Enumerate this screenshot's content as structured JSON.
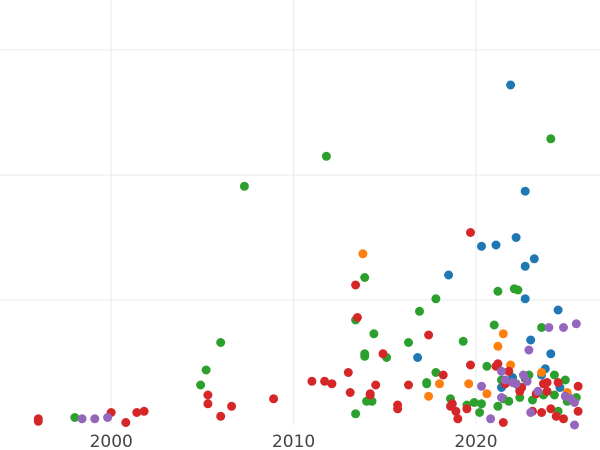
{
  "chart_data": {
    "type": "scatter",
    "title": "",
    "xlabel": "",
    "ylabel": "",
    "xlim": [
      1993.9,
      2026.8
    ],
    "ylim": [
      0,
      340
    ],
    "x_ticks": [
      2000,
      2010,
      2020
    ],
    "y_gridlines": [
      100,
      200,
      300
    ],
    "y_tick_labels_visible": false,
    "grid": true,
    "legend": "none",
    "series": [
      {
        "color": "#1f77b4",
        "points": [
          [
            2021.9,
            272
          ],
          [
            2022.7,
            187
          ],
          [
            2020.3,
            143
          ],
          [
            2021.1,
            144
          ],
          [
            2022.2,
            150
          ],
          [
            2022.7,
            127
          ],
          [
            2023.2,
            133
          ],
          [
            2018.5,
            120
          ],
          [
            2022.7,
            101
          ],
          [
            2024.5,
            92
          ],
          [
            2023.0,
            68
          ],
          [
            2016.8,
            54
          ],
          [
            2024.1,
            57
          ],
          [
            2023.8,
            45
          ],
          [
            2022.0,
            38
          ],
          [
            2022.2,
            33
          ],
          [
            2021.7,
            35
          ],
          [
            2023.6,
            40
          ],
          [
            2025.0,
            25
          ],
          [
            2024.6,
            30
          ],
          [
            2021.4,
            30
          ],
          [
            2022.4,
            28
          ]
        ]
      },
      {
        "color": "#ff7f0e",
        "points": [
          [
            2013.8,
            137
          ],
          [
            2021.5,
            73
          ],
          [
            2021.2,
            63
          ],
          [
            2019.6,
            33
          ],
          [
            2018.0,
            33
          ],
          [
            2017.4,
            23
          ],
          [
            2021.9,
            48
          ],
          [
            2023.6,
            42
          ],
          [
            2025.0,
            26
          ],
          [
            2022.5,
            30
          ],
          [
            2020.6,
            25
          ]
        ]
      },
      {
        "color": "#2ca02c",
        "points": [
          [
            2024.1,
            229
          ],
          [
            2011.8,
            215
          ],
          [
            2007.3,
            191
          ],
          [
            2013.9,
            118
          ],
          [
            2021.2,
            107
          ],
          [
            2022.3,
            108
          ],
          [
            2022.1,
            109
          ],
          [
            2017.8,
            101
          ],
          [
            2016.9,
            91
          ],
          [
            2023.6,
            78
          ],
          [
            2021.0,
            80
          ],
          [
            2013.4,
            84
          ],
          [
            2014.4,
            73
          ],
          [
            2019.3,
            67
          ],
          [
            2016.3,
            66
          ],
          [
            2006.0,
            66
          ],
          [
            2013.9,
            55
          ],
          [
            2013.9,
            57
          ],
          [
            2015.1,
            54
          ],
          [
            2005.2,
            44
          ],
          [
            2004.9,
            32
          ],
          [
            2020.6,
            47
          ],
          [
            2022.9,
            40
          ],
          [
            2024.3,
            40
          ],
          [
            2024.9,
            36
          ],
          [
            2017.3,
            34
          ],
          [
            2017.8,
            42
          ],
          [
            2017.3,
            33
          ],
          [
            2021.4,
            36
          ],
          [
            2019.9,
            18
          ],
          [
            2018.6,
            21
          ],
          [
            2020.2,
            10
          ],
          [
            2013.4,
            9
          ],
          [
            2014.0,
            19
          ],
          [
            2014.3,
            19
          ],
          [
            2019.5,
            16
          ],
          [
            2020.3,
            17
          ],
          [
            2021.2,
            15
          ],
          [
            2021.8,
            19
          ],
          [
            2022.4,
            22
          ],
          [
            2023.1,
            20
          ],
          [
            2024.3,
            24
          ],
          [
            2025.0,
            19
          ],
          [
            2025.5,
            22
          ],
          [
            1998.0,
            6
          ],
          [
            2022.7,
            37
          ],
          [
            2023.7,
            24
          ],
          [
            2021.5,
            21
          ],
          [
            2024.5,
            11
          ]
        ]
      },
      {
        "color": "#d62728",
        "points": [
          [
            2019.7,
            154
          ],
          [
            2013.4,
            112
          ],
          [
            2013.5,
            86
          ],
          [
            2017.4,
            72
          ],
          [
            2014.9,
            57
          ],
          [
            2019.7,
            48
          ],
          [
            2021.2,
            49
          ],
          [
            2021.8,
            43
          ],
          [
            2013.0,
            42
          ],
          [
            2018.2,
            40
          ],
          [
            2011.0,
            35
          ],
          [
            2012.1,
            33
          ],
          [
            2011.7,
            35
          ],
          [
            2014.5,
            32
          ],
          [
            2016.3,
            32
          ],
          [
            2013.1,
            26
          ],
          [
            2014.2,
            25
          ],
          [
            2014.2,
            24
          ],
          [
            2005.3,
            24
          ],
          [
            2008.9,
            21
          ],
          [
            2005.3,
            17
          ],
          [
            2006.6,
            15
          ],
          [
            2015.7,
            13
          ],
          [
            2015.7,
            16
          ],
          [
            2018.6,
            15
          ],
          [
            2019.5,
            13
          ],
          [
            2018.7,
            17
          ],
          [
            2018.9,
            11
          ],
          [
            2019.0,
            5
          ],
          [
            2022.4,
            27
          ],
          [
            2023.3,
            25
          ],
          [
            2023.7,
            33
          ],
          [
            2023.9,
            27
          ],
          [
            2024.5,
            34
          ],
          [
            2025.6,
            31
          ],
          [
            2024.1,
            13
          ],
          [
            2023.6,
            10
          ],
          [
            2023.1,
            11
          ],
          [
            2024.8,
            5
          ],
          [
            2025.6,
            11
          ],
          [
            2024.4,
            7
          ],
          [
            2006.0,
            7
          ],
          [
            2001.4,
            10
          ],
          [
            2001.8,
            11
          ],
          [
            2000.0,
            10
          ],
          [
            2000.8,
            2
          ],
          [
            1996.0,
            5
          ],
          [
            1996.0,
            3
          ],
          [
            2021.5,
            2
          ],
          [
            2021.1,
            47
          ],
          [
            2022.5,
            30
          ],
          [
            2021.6,
            33
          ],
          [
            2023.9,
            34
          ]
        ]
      },
      {
        "color": "#9467bd",
        "points": [
          [
            2025.5,
            81
          ],
          [
            2024.8,
            78
          ],
          [
            2024.0,
            78
          ],
          [
            2022.9,
            60
          ],
          [
            2022.6,
            40
          ],
          [
            2021.4,
            43
          ],
          [
            2020.3,
            31
          ],
          [
            2022.0,
            34
          ],
          [
            2021.6,
            36
          ],
          [
            2022.8,
            35
          ],
          [
            2023.4,
            27
          ],
          [
            2024.9,
            23
          ],
          [
            2025.2,
            21
          ],
          [
            2025.4,
            18
          ],
          [
            2023.0,
            10
          ],
          [
            2020.8,
            5
          ],
          [
            2025.4,
            0
          ],
          [
            1999.8,
            6
          ],
          [
            1999.1,
            5
          ],
          [
            1998.4,
            5
          ],
          [
            2021.4,
            22
          ],
          [
            2022.2,
            33
          ]
        ]
      }
    ]
  }
}
